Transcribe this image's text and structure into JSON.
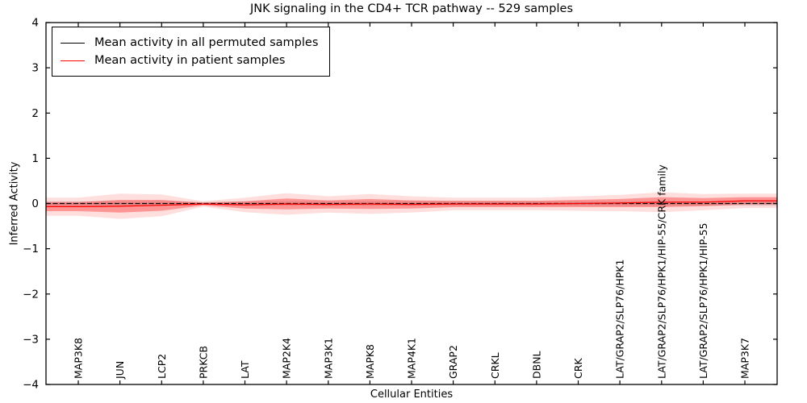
{
  "figure": {
    "title": "JNK signaling in the CD4+ TCR pathway -- 529 samples",
    "xlabel": "Cellular Entities",
    "ylabel": "Inferred Activity"
  },
  "chart_data": {
    "type": "line",
    "title": "JNK signaling in the CD4+ TCR pathway -- 529 samples",
    "xlabel": "Cellular Entities",
    "ylabel": "Inferred Activity",
    "ylim": [
      -4,
      4
    ],
    "yticks": [
      -4,
      -3,
      -2,
      -1,
      0,
      1,
      2,
      3,
      4
    ],
    "ytick_labels": [
      "−4",
      "−3",
      "−2",
      "−1",
      "0",
      "1",
      "2",
      "3",
      "4"
    ],
    "grid": false,
    "legend_position": "upper left",
    "categories": [
      "MAP3K8",
      "JUN",
      "LCP2",
      "PRKCB",
      "LAT",
      "MAP2K4",
      "MAP3K1",
      "MAPK8",
      "MAP4K1",
      "GRAP2",
      "CRKL",
      "DBNL",
      "CRK",
      "LAT/GRAP2/SLP76/HPK1",
      "LAT/GRAP2/SLP76/HPK1/HIP-55/CRK family",
      "LAT/GRAP2/SLP76/HPK1/HIP-55",
      "MAP3K7"
    ],
    "series": [
      {
        "name": "Mean activity in all permuted samples",
        "color": "#000000",
        "values": [
          0,
          0,
          0,
          0,
          0,
          0,
          0,
          0,
          0,
          0,
          0,
          0,
          0,
          0,
          0,
          0,
          0
        ],
        "band_half": [
          0.05,
          0.05,
          0.05,
          0.03,
          0.05,
          0.05,
          0.05,
          0.05,
          0.05,
          0.05,
          0.05,
          0.05,
          0.05,
          0.05,
          0.05,
          0.05,
          0.05
        ],
        "band_color": "#aaaaaa"
      },
      {
        "name": "Mean activity in patient samples",
        "color": "#ff0000",
        "values": [
          -0.07,
          -0.06,
          -0.04,
          -0.01,
          -0.03,
          -0.01,
          -0.02,
          -0.01,
          -0.02,
          -0.01,
          -0.01,
          -0.01,
          0.0,
          0.01,
          0.03,
          0.03,
          0.06
        ],
        "band_half": [
          0.1,
          0.14,
          0.12,
          0.03,
          0.08,
          0.12,
          0.09,
          0.11,
          0.09,
          0.07,
          0.07,
          0.07,
          0.08,
          0.09,
          0.11,
          0.09,
          0.08
        ],
        "band_color": "#ff0000"
      }
    ]
  }
}
